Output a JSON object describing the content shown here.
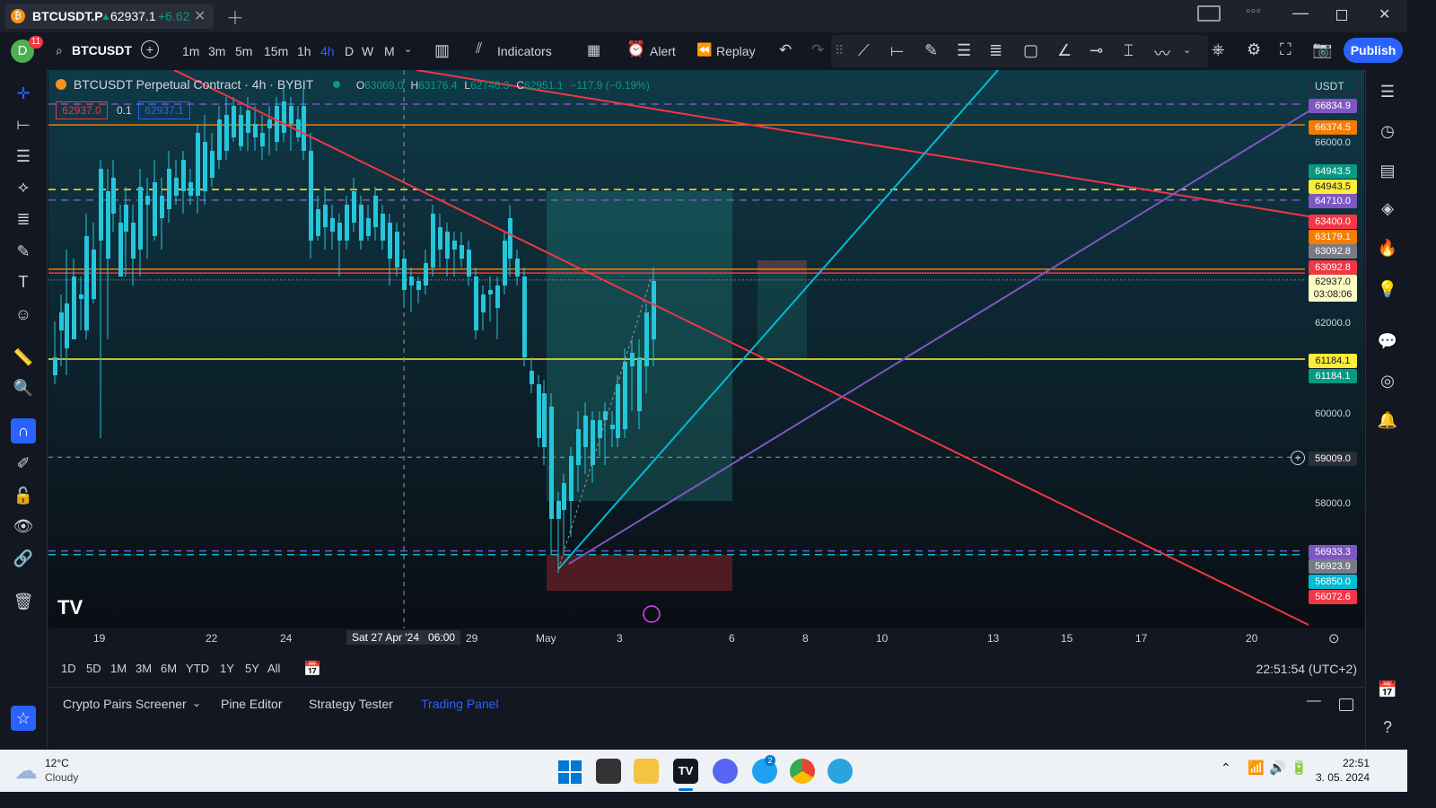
{
  "window": {
    "tab_title": "BTCUSDT.P",
    "tab_price": "62937.1",
    "tab_change": "+6.62",
    "tab_arrow": "▲"
  },
  "toolbar": {
    "avatar": "D",
    "notifications": "11",
    "symbol": "BTCUSDT",
    "intervals": [
      "1m",
      "3m",
      "5m",
      "15m",
      "1h",
      "4h",
      "D",
      "W",
      "M"
    ],
    "selected_interval": "4h",
    "indicators_label": "Indicators",
    "alert_label": "Alert",
    "replay_label": "Replay",
    "publish_label": "Publish"
  },
  "legend": {
    "title": "BTCUSDT Perpetual Contract · 4h · BYBIT",
    "o_label": "O",
    "o": "63069.0",
    "h_label": "H",
    "h": "63176.4",
    "l_label": "L",
    "l": "62746.3",
    "c_label": "C",
    "c": "62951.1",
    "change": "−117.9 (−0.19%)",
    "bid": "62937.0",
    "spread": "0.1",
    "ask": "62937.1"
  },
  "price_axis": {
    "currency": "USDT",
    "ticks": [
      "66000.0",
      "62000.0",
      "60000.0",
      "58000.0"
    ],
    "labels": [
      {
        "text": "66834.9",
        "bg": "#7e57c2",
        "fg": "#ffffff"
      },
      {
        "text": "66374.5",
        "bg": "#f57c00",
        "fg": "#ffffff"
      },
      {
        "text": "64943.5",
        "bg": "#089981",
        "fg": "#ffffff"
      },
      {
        "text": "64943.5",
        "bg": "#ffeb3b",
        "fg": "#131722"
      },
      {
        "text": "64710.0",
        "bg": "#7e57c2",
        "fg": "#ffffff"
      },
      {
        "text": "63400.0",
        "bg": "#f23645",
        "fg": "#ffffff"
      },
      {
        "text": "63179.1",
        "bg": "#f57c00",
        "fg": "#ffffff"
      },
      {
        "text": "63092.8",
        "bg": "#787b86",
        "fg": "#ffffff"
      },
      {
        "text": "63092.8",
        "bg": "#f23645",
        "fg": "#ffffff"
      },
      {
        "text": "62937.0",
        "bg": "#fff9c4",
        "fg": "#131722"
      },
      {
        "text": "03:08:06",
        "bg": "#fff9c4",
        "fg": "#131722"
      },
      {
        "text": "61184.1",
        "bg": "#ffeb3b",
        "fg": "#131722"
      },
      {
        "text": "61184.1",
        "bg": "#089981",
        "fg": "#ffffff"
      },
      {
        "text": "59009.0",
        "bg": "#2a2e39",
        "fg": "#ffffff"
      },
      {
        "text": "56933.3",
        "bg": "#7e57c2",
        "fg": "#ffffff"
      },
      {
        "text": "56923.9",
        "bg": "#787b86",
        "fg": "#ffffff"
      },
      {
        "text": "56850.0",
        "bg": "#00bcd4",
        "fg": "#ffffff"
      },
      {
        "text": "56072.6",
        "bg": "#f23645",
        "fg": "#ffffff"
      }
    ]
  },
  "time_axis": {
    "labels": [
      "19",
      "22",
      "24",
      "29",
      "May",
      "3",
      "6",
      "8",
      "10",
      "13",
      "15",
      "17",
      "20"
    ],
    "crosshair_label": "Sat 27 Apr '24   06:00"
  },
  "range_bar": {
    "ranges": [
      "1D",
      "5D",
      "1M",
      "3M",
      "6M",
      "YTD",
      "1Y",
      "5Y",
      "All"
    ],
    "clock": "22:51:54 (UTC+2)"
  },
  "bottom_panel": {
    "tabs": [
      "Crypto Pairs Screener",
      "Pine Editor",
      "Strategy Tester",
      "Trading Panel"
    ],
    "active_tab": "Trading Panel"
  },
  "taskbar": {
    "weather_temp": "12°C",
    "weather_desc": "Cloudy",
    "time": "22:51",
    "date": "3. 05. 2024",
    "telegram_badge": "2"
  },
  "colors": {
    "bull": "#fff59d",
    "bear": "#26c6da",
    "red_line": "#f23645",
    "orange_line": "#f57c00",
    "purple_line": "#7e57c2",
    "cyan_line": "#00bcd4",
    "yellow_line": "#ffeb3b"
  }
}
